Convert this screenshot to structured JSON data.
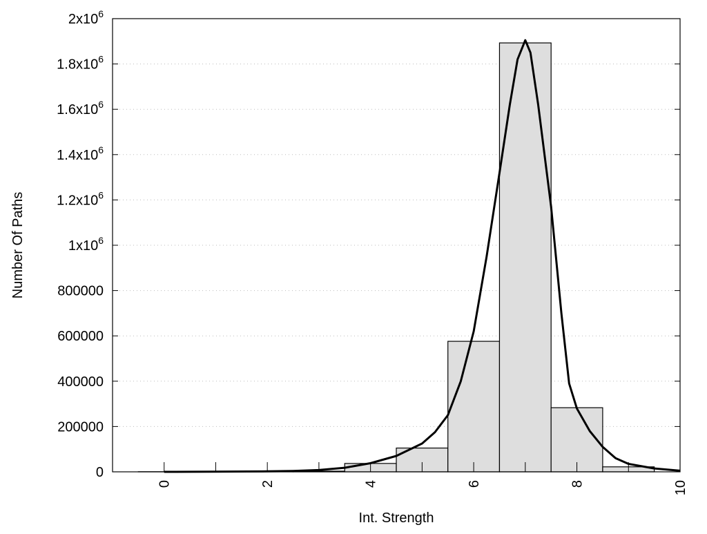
{
  "chart_data": {
    "type": "bar",
    "title": "",
    "xlabel": "Int. Strength",
    "ylabel": "Number Of Paths",
    "xlim": [
      -1,
      10
    ],
    "ylim": [
      0,
      2000000
    ],
    "grid": "horizontal dotted",
    "bar_color": "#dedede",
    "x_ticks": [
      {
        "value": 0,
        "label": "0"
      },
      {
        "value": 2,
        "label": "2"
      },
      {
        "value": 4,
        "label": "4"
      },
      {
        "value": 6,
        "label": "6"
      },
      {
        "value": 8,
        "label": "8"
      },
      {
        "value": 10,
        "label": "10"
      }
    ],
    "y_ticks": [
      {
        "value": 0,
        "label": "0"
      },
      {
        "value": 200000,
        "label": "200000"
      },
      {
        "value": 400000,
        "label": "400000"
      },
      {
        "value": 600000,
        "label": "600000"
      },
      {
        "value": 800000,
        "label": "800000"
      },
      {
        "value": 1000000,
        "label": "1x10",
        "exp": "6"
      },
      {
        "value": 1200000,
        "label": "1.2x10",
        "exp": "6"
      },
      {
        "value": 1400000,
        "label": "1.4x10",
        "exp": "6"
      },
      {
        "value": 1600000,
        "label": "1.6x10",
        "exp": "6"
      },
      {
        "value": 1800000,
        "label": "1.8x10",
        "exp": "6"
      },
      {
        "value": 2000000,
        "label": "2x10",
        "exp": "6"
      }
    ],
    "bars": {
      "x": [
        0,
        1,
        2,
        3,
        4,
        5,
        6,
        7,
        8,
        9
      ],
      "values": [
        500,
        500,
        1000,
        3000,
        37000,
        105000,
        576000,
        1893000,
        283000,
        22000
      ]
    },
    "fit_curve": {
      "x": [
        0,
        1,
        2,
        2.5,
        3,
        3.5,
        4,
        4.5,
        5,
        5.25,
        5.5,
        5.75,
        6,
        6.25,
        6.5,
        6.7,
        6.85,
        7.0,
        7.1,
        7.25,
        7.5,
        7.7,
        7.85,
        8,
        8.25,
        8.5,
        8.75,
        9,
        9.5,
        10
      ],
      "y": [
        0,
        500,
        2000,
        4000,
        8000,
        18000,
        38000,
        70000,
        125000,
        175000,
        250000,
        400000,
        620000,
        950000,
        1320000,
        1620000,
        1820000,
        1905000,
        1850000,
        1620000,
        1170000,
        700000,
        390000,
        280000,
        180000,
        110000,
        60000,
        35000,
        15000,
        5000
      ]
    }
  }
}
